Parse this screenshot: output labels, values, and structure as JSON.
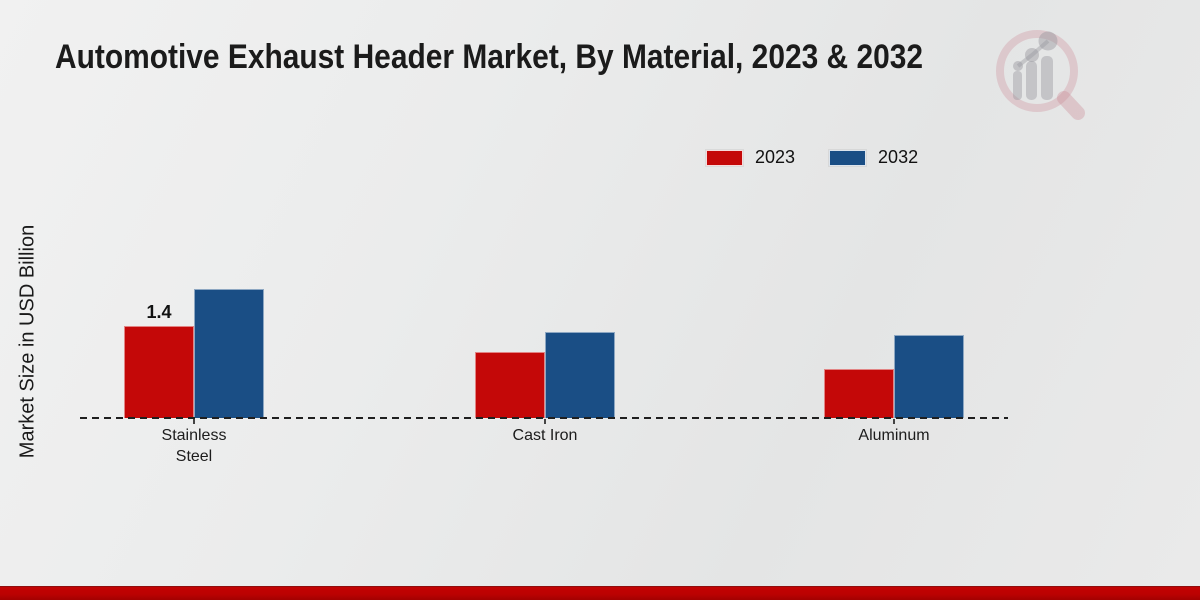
{
  "title": "Automotive Exhaust Header Market, By Material, 2023 & 2032",
  "y_axis_label": "Market Size in USD Billion",
  "legend": {
    "items": [
      {
        "label": "2023",
        "color": "#c40808"
      },
      {
        "label": "2032",
        "color": "#1a4e85"
      }
    ]
  },
  "colors": {
    "series_2023": "#c40808",
    "series_2032": "#1a4e85",
    "bottom_strip": "#bb0202",
    "axis": "#1f1f1f"
  },
  "chart_data": {
    "type": "bar",
    "categories": [
      "Stainless Steel",
      "Cast Iron",
      "Aluminum"
    ],
    "series": [
      {
        "name": "2023",
        "color": "#c40808",
        "values": [
          1.4,
          1.0,
          0.75
        ],
        "labels": [
          "1.4",
          "",
          ""
        ]
      },
      {
        "name": "2032",
        "color": "#1a4e85",
        "values": [
          1.96,
          1.31,
          1.26
        ],
        "labels": [
          "",
          "",
          ""
        ]
      }
    ],
    "title": "Automotive Exhaust Header Market, By Material, 2023 & 2032",
    "xlabel": "",
    "ylabel": "Market Size in USD Billion",
    "ylim": [
      0,
      2.2
    ],
    "grid": false,
    "baseline_style": "dashed",
    "legend_position": "top-right",
    "watermark": "market-research-magnifier-logo"
  }
}
